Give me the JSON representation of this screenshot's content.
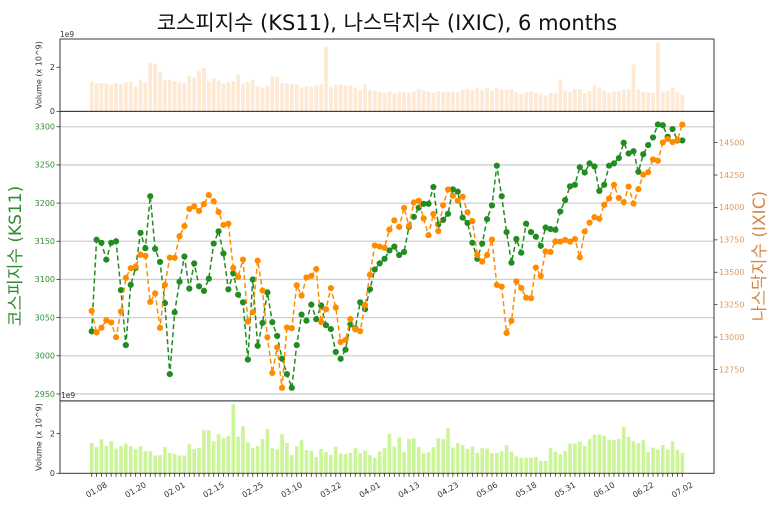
{
  "chart_data": {
    "type": "line",
    "title": "코스피지수 (KS11), 나스닥지수 (IXIC), 6 months",
    "grid": true,
    "x": {
      "count": 122,
      "xlim": [
        -6.49,
        127.49
      ],
      "tick_positions": [
        1,
        9,
        17,
        25,
        33,
        41,
        49,
        57,
        65,
        73,
        81,
        89,
        97,
        105,
        113,
        121
      ],
      "tick_labels": [
        "01.08",
        "01.20",
        "02.01",
        "02.15",
        "02.25",
        "03.10",
        "03.22",
        "04.01",
        "04.13",
        "04.23",
        "05.06",
        "05.18",
        "05.31",
        "06.10",
        "06.22",
        "07.02"
      ],
      "tick_rotation": 30
    },
    "left_axis": {
      "label": "코스피지수 (KS11)",
      "ylim": [
        2940.9,
        3320.1
      ],
      "ticks": [
        2950,
        3000,
        3050,
        3100,
        3150,
        3200,
        3250,
        3300
      ],
      "tick_labels": [
        "2950",
        "3000",
        "3050",
        "3100",
        "3150",
        "3200",
        "3250",
        "3300"
      ],
      "label_color": "#2e8b2e",
      "tick_color": "#2f8f2f"
    },
    "right_axis": {
      "label": "나스닥지수 (IXIC)",
      "ylim": [
        12507.7,
        14740.8
      ],
      "ticks": [
        12750,
        13000,
        13250,
        13500,
        13750,
        14000,
        14250,
        14500
      ],
      "tick_labels": [
        "12750",
        "13000",
        "13250",
        "13500",
        "13750",
        "14000",
        "14250",
        "14500"
      ],
      "label_color": "#d2884a",
      "tick_color": "#dc9a62"
    },
    "series": [
      {
        "name": "코스피지수 (KS11)",
        "axis": "left",
        "color": "#228B22",
        "linestyle": "dashed",
        "marker": "o",
        "values": [
          3032,
          3152,
          3148,
          3126,
          3148,
          3150,
          3086,
          3014,
          3093,
          3115,
          3161,
          3141,
          3209,
          3140,
          3123,
          3069,
          2976,
          3057,
          3097,
          3130,
          3088,
          3121,
          3091,
          3085,
          3101,
          3147,
          3163,
          3134,
          3087,
          3108,
          3080,
          3070,
          2995,
          3100,
          3013,
          3043,
          3083,
          3044,
          3026,
          2996,
          2976,
          2958,
          3014,
          3054,
          3046,
          3067,
          3048,
          3066,
          3040,
          3035,
          3005,
          2996,
          3008,
          3041,
          3036,
          3070,
          3061,
          3087,
          3113,
          3121,
          3127,
          3138,
          3143,
          3132,
          3136,
          3169,
          3182,
          3194,
          3199,
          3199,
          3221,
          3172,
          3178,
          3186,
          3218,
          3215,
          3181,
          3174,
          3148,
          3127,
          3147,
          3179,
          3197,
          3249,
          3209,
          3162,
          3122,
          3153,
          3135,
          3173,
          3162,
          3156,
          3144,
          3168,
          3166,
          3165,
          3189,
          3204,
          3222,
          3224,
          3247,
          3240,
          3252,
          3248,
          3216,
          3224,
          3249,
          3252,
          3259,
          3279,
          3265,
          3268,
          3241,
          3264,
          3276,
          3286,
          3303,
          3302,
          3287,
          3297,
          3282,
          3282
        ]
      },
      {
        "name": "나스닥지수 (IXIC)",
        "axis": "right",
        "color": "#FF8C00",
        "linestyle": "dashed",
        "marker": "o",
        "values": [
          13202,
          13036,
          13072,
          13129,
          13113,
          12999,
          13197,
          13457,
          13531,
          13543,
          13636,
          13626,
          13271,
          13337,
          13071,
          13403,
          13613,
          13611,
          13778,
          13856,
          13988,
          14008,
          13973,
          14026,
          14095,
          14048,
          13965,
          13865,
          13874,
          13533,
          13465,
          13598,
          13119,
          13192,
          13589,
          13359,
          12998,
          12723,
          12920,
          12609,
          13074,
          13069,
          13399,
          13320,
          13460,
          13472,
          13525,
          13116,
          13215,
          13378,
          13228,
          12962,
          12978,
          13139,
          13060,
          13045,
          13247,
          13480,
          13706,
          13698,
          13689,
          13829,
          13900,
          13850,
          13996,
          13858,
          14039,
          14052,
          13915,
          13786,
          13950,
          13818,
          14017,
          14139,
          14090,
          14051,
          14083,
          13963,
          13895,
          13634,
          13582,
          13633,
          13752,
          13402,
          13389,
          13032,
          13125,
          13430,
          13379,
          13304,
          13300,
          13536,
          13471,
          13661,
          13657,
          13738,
          13736,
          13749,
          13736,
          13756,
          13615,
          13814,
          13882,
          13925,
          13912,
          14020,
          14069,
          14174,
          14073,
          14040,
          14161,
          14030,
          14141,
          14253,
          14272,
          14370,
          14360,
          14501,
          14528,
          14504,
          14522,
          14639
        ]
      }
    ],
    "volume_top": {
      "type": "bar",
      "ylabel": "Volume (x 10^9)",
      "offset_text": "1e9",
      "ylim": [
        0,
        3.28
      ],
      "ticks": [
        0,
        2
      ],
      "tick_labels": [
        "0",
        "2"
      ],
      "color": "#fde9d4",
      "values": [
        1.35,
        1.26,
        1.28,
        1.28,
        1.22,
        1.28,
        1.25,
        1.31,
        1.35,
        1.14,
        1.44,
        1.28,
        2.21,
        2.16,
        1.8,
        1.41,
        1.44,
        1.37,
        1.32,
        1.29,
        1.62,
        1.53,
        1.85,
        1.97,
        1.35,
        1.5,
        1.38,
        1.25,
        1.32,
        1.37,
        1.67,
        1.25,
        1.34,
        1.44,
        1.13,
        1.08,
        1.17,
        1.59,
        1.58,
        1.28,
        1.28,
        1.25,
        1.22,
        1.08,
        1.14,
        1.11,
        1.17,
        1.23,
        2.93,
        1.11,
        1.22,
        1.22,
        1.17,
        1.16,
        1.08,
        0.99,
        1.22,
        0.96,
        0.93,
        0.89,
        0.83,
        0.9,
        0.81,
        0.9,
        0.86,
        0.83,
        0.9,
        1.01,
        0.93,
        0.9,
        0.83,
        0.9,
        0.87,
        0.89,
        0.9,
        0.86,
        0.99,
        1.02,
        0.96,
        1.08,
        0.96,
        1.05,
        0.93,
        1.04,
        0.99,
        0.99,
        0.99,
        0.86,
        0.78,
        0.86,
        0.9,
        0.83,
        0.8,
        0.72,
        0.83,
        0.83,
        1.43,
        0.93,
        0.89,
        1.02,
        1.02,
        0.83,
        0.93,
        1.17,
        1.08,
        0.93,
        0.83,
        0.9,
        0.92,
        0.99,
        0.99,
        2.12,
        0.99,
        0.9,
        0.86,
        0.83,
        3.12,
        0.9,
        0.93,
        1.08,
        0.86,
        0.74
      ]
    },
    "volume_bottom": {
      "type": "bar",
      "ylabel": "Volume (x 10^9)",
      "offset_text": "1e9",
      "ylim": [
        0,
        3.65
      ],
      "ticks": [
        0,
        2
      ],
      "tick_labels": [
        "0",
        "2"
      ],
      "color": "#ccf59a",
      "values": [
        1.53,
        1.32,
        1.72,
        1.38,
        1.62,
        1.25,
        1.37,
        1.5,
        1.37,
        1.22,
        1.37,
        1.12,
        1.12,
        0.9,
        0.92,
        1.32,
        1.02,
        0.97,
        0.9,
        0.9,
        1.47,
        1.22,
        1.28,
        2.17,
        2.17,
        1.62,
        1.97,
        1.77,
        1.88,
        3.48,
        1.85,
        2.37,
        1.57,
        1.27,
        1.37,
        1.73,
        2.23,
        1.27,
        1.22,
        1.97,
        1.53,
        0.92,
        1.35,
        1.67,
        1.17,
        1.13,
        0.82,
        1.23,
        1.07,
        0.92,
        1.35,
        1.0,
        0.97,
        1.03,
        1.27,
        1.03,
        1.15,
        0.92,
        0.78,
        1.1,
        1.27,
        1.98,
        1.35,
        1.82,
        1.07,
        1.73,
        1.77,
        1.32,
        1.02,
        1.07,
        1.32,
        1.77,
        1.73,
        2.27,
        1.3,
        1.52,
        1.42,
        1.22,
        1.35,
        1.03,
        1.27,
        1.25,
        1.02,
        1.03,
        1.1,
        1.42,
        1.1,
        0.85,
        0.78,
        0.78,
        0.78,
        0.82,
        0.62,
        0.62,
        1.27,
        1.1,
        0.97,
        1.13,
        1.5,
        1.5,
        1.6,
        1.38,
        1.73,
        1.95,
        1.95,
        1.9,
        1.67,
        1.67,
        1.73,
        2.33,
        1.85,
        1.62,
        1.52,
        1.67,
        1.07,
        1.3,
        1.2,
        1.42,
        1.2,
        1.62,
        1.17,
        1.03
      ]
    }
  }
}
